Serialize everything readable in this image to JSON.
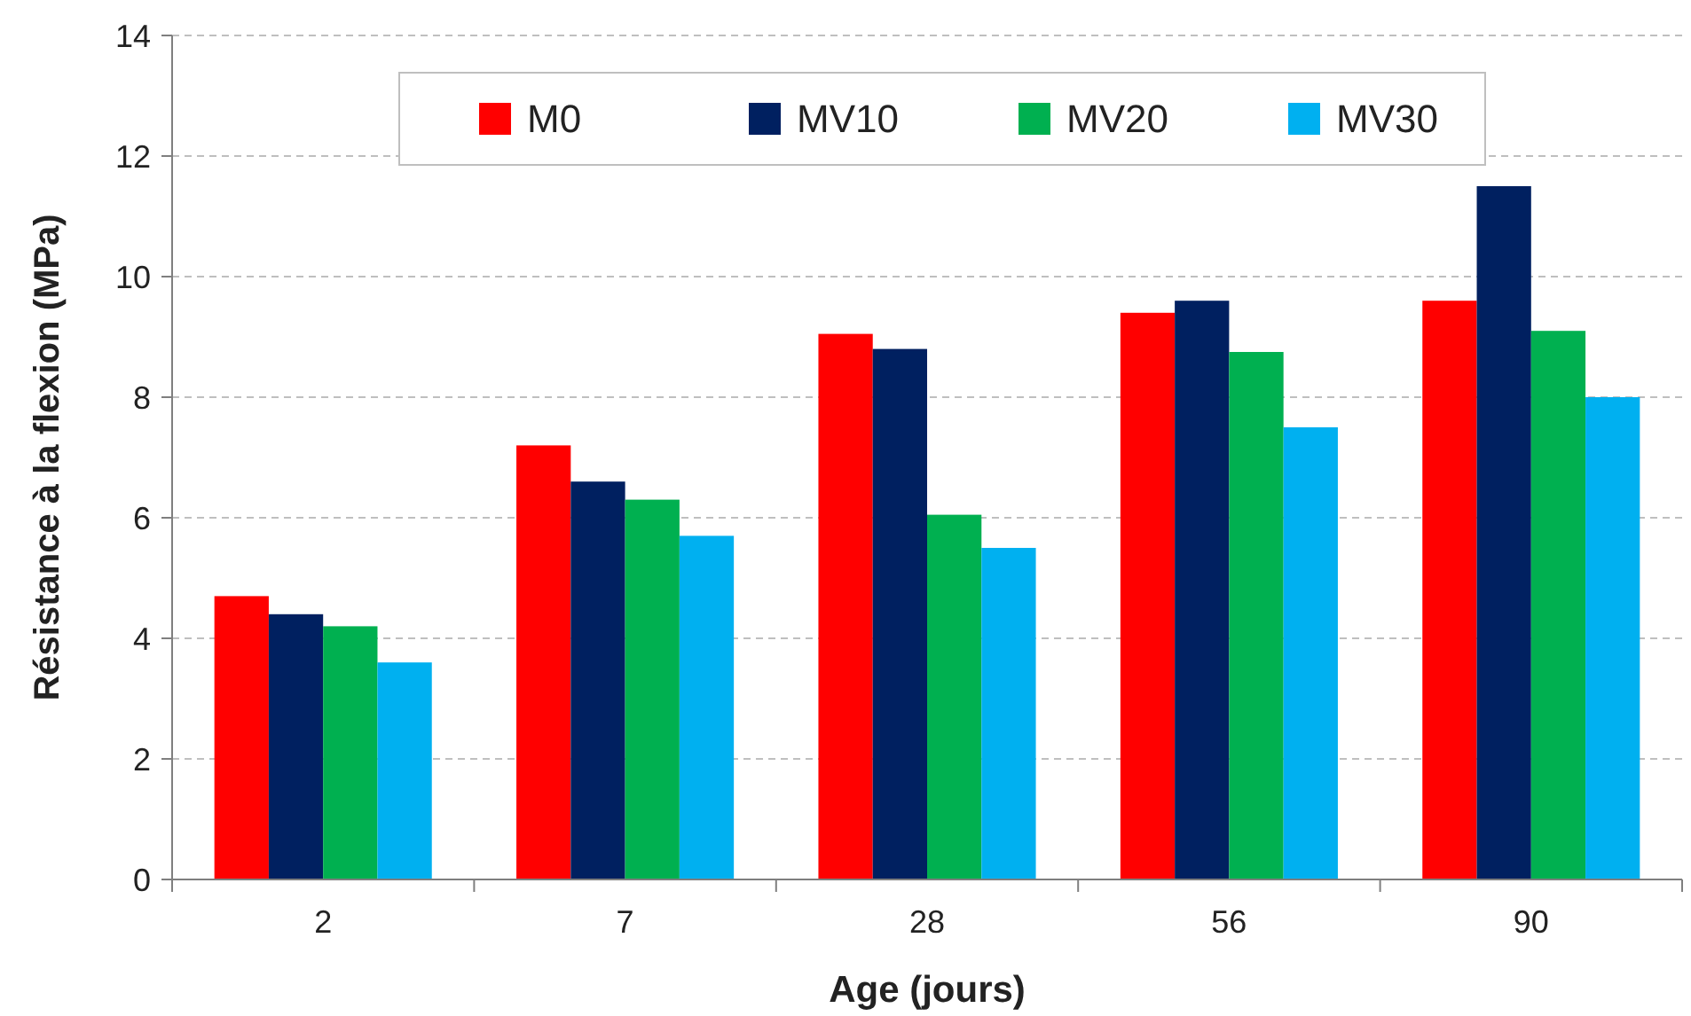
{
  "chart_data": {
    "type": "bar",
    "xlabel": "Age (jours)",
    "ylabel": "Résistance à la flexion (MPa)",
    "categories": [
      "2",
      "7",
      "28",
      "56",
      "90"
    ],
    "series": [
      {
        "name": "M0",
        "color": "#ff0000",
        "values": [
          4.7,
          7.2,
          9.05,
          9.4,
          9.6
        ]
      },
      {
        "name": "MV10",
        "color": "#002060",
        "values": [
          4.4,
          6.6,
          8.8,
          9.6,
          11.5
        ]
      },
      {
        "name": "MV20",
        "color": "#00b050",
        "values": [
          4.2,
          6.3,
          6.05,
          8.75,
          9.1
        ]
      },
      {
        "name": "MV30",
        "color": "#00b0f0",
        "values": [
          3.6,
          5.7,
          5.5,
          7.5,
          8.0
        ]
      }
    ],
    "ylim": [
      0,
      14
    ],
    "yticks": [
      0,
      2,
      4,
      6,
      8,
      10,
      12,
      14
    ],
    "grid": "y",
    "legend": "top"
  }
}
